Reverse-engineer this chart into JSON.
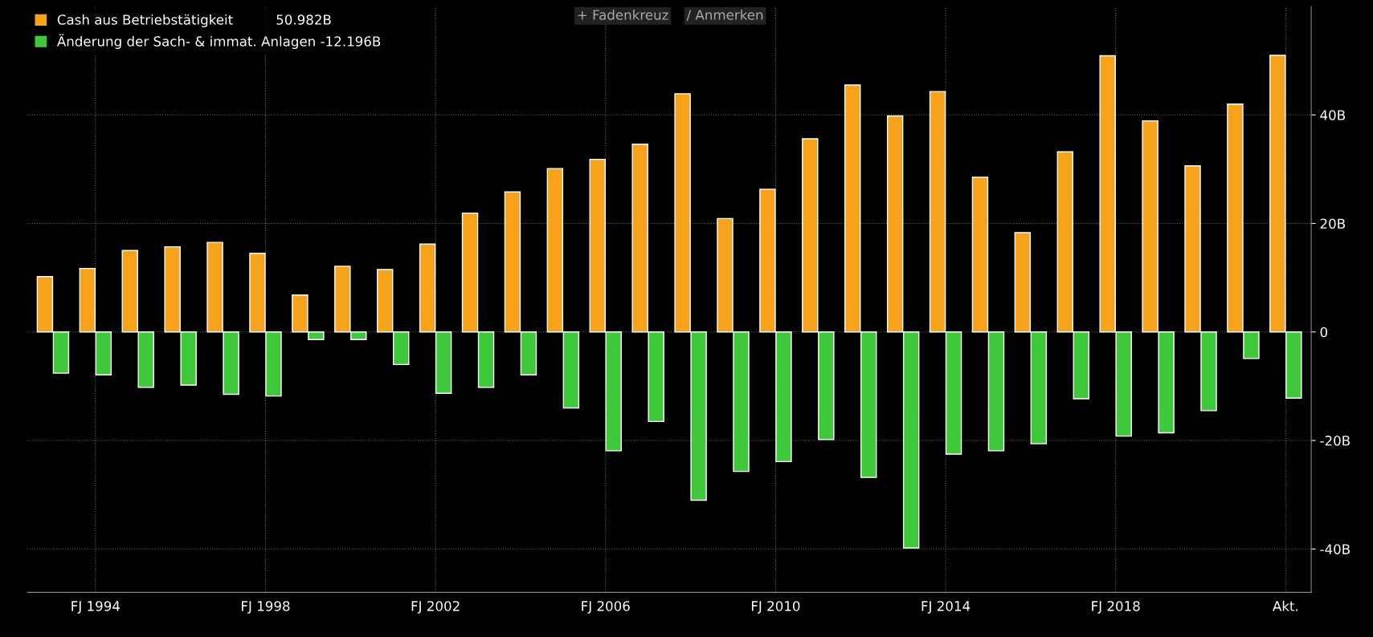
{
  "chart_data": {
    "type": "bar",
    "categories": [
      null,
      "FJ 1994",
      null,
      null,
      null,
      "FJ 1998",
      null,
      null,
      null,
      "FJ 2002",
      null,
      null,
      null,
      "FJ 2006",
      null,
      null,
      null,
      "FJ 2010",
      null,
      null,
      null,
      "FJ 2014",
      null,
      null,
      null,
      "FJ 2018",
      null,
      null,
      null,
      "Akt."
    ],
    "series": [
      {
        "name": "Cash aus Betriebstätigkeit          50.982B",
        "color": "#f7a21b",
        "values": [
          10.2,
          11.7,
          15.0,
          15.7,
          16.5,
          14.5,
          6.8,
          12.1,
          11.5,
          16.2,
          21.9,
          25.8,
          30.1,
          31.8,
          34.6,
          43.9,
          20.9,
          26.3,
          35.6,
          45.5,
          39.8,
          44.3,
          28.5,
          18.3,
          33.2,
          50.9,
          38.9,
          30.6,
          42.0,
          50.982
        ]
      },
      {
        "name": "Änderung der Sach- & immat. Anlagen -12.196B",
        "color": "#3ec93a",
        "values": [
          -7.6,
          -7.9,
          -10.2,
          -9.8,
          -11.5,
          -11.8,
          -1.4,
          -1.4,
          -6.0,
          -11.3,
          -10.2,
          -7.9,
          -14.0,
          -21.9,
          -16.5,
          -31.0,
          -25.7,
          -23.9,
          -19.8,
          -26.8,
          -39.8,
          -22.5,
          -21.9,
          -20.6,
          -12.3,
          -19.2,
          -18.6,
          -14.5,
          -4.9,
          -12.196
        ]
      }
    ],
    "ylim": [
      -48,
      60
    ],
    "yticks": [
      {
        "value": -40,
        "label": "-40B"
      },
      {
        "value": -20,
        "label": "-20B"
      },
      0,
      {
        "value": 20,
        "label": "20B"
      },
      {
        "value": 40,
        "label": "40B"
      }
    ],
    "grid": true,
    "legend": "top left",
    "annotations": [
      "+ Fadenkreuz",
      "∕ Anmerken"
    ]
  }
}
